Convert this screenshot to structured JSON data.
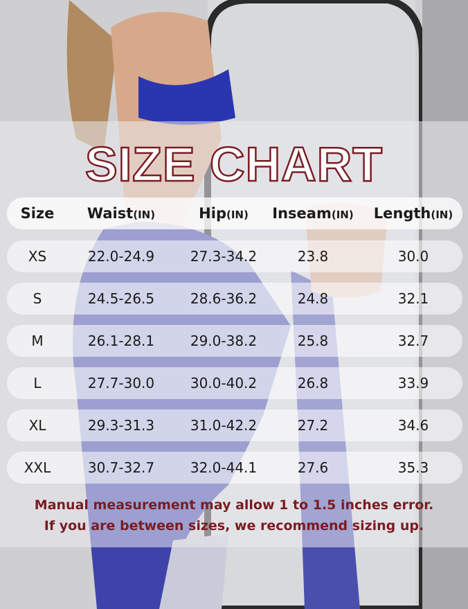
{
  "title": "SIZE CHART",
  "columns": [
    {
      "label": "Size",
      "unit": ""
    },
    {
      "label": "Waist",
      "unit": "(IN)"
    },
    {
      "label": "Hip",
      "unit": "(IN)"
    },
    {
      "label": "Inseam",
      "unit": "(IN)"
    },
    {
      "label": "Length",
      "unit": "(IN)"
    }
  ],
  "rows": [
    [
      "XS",
      "22.0-24.9",
      "27.3-34.2",
      "23.8",
      "30.0"
    ],
    [
      "S",
      "24.5-26.5",
      "28.6-36.2",
      "24.8",
      "32.1"
    ],
    [
      "M",
      "26.1-28.1",
      "29.0-38.2",
      "25.8",
      "32.7"
    ],
    [
      "L",
      "27.7-30.0",
      "30.0-40.2",
      "26.8",
      "33.9"
    ],
    [
      "XL",
      "29.3-31.3",
      "31.0-42.2",
      "27.2",
      "34.6"
    ],
    [
      "XXL",
      "30.7-32.7",
      "32.0-44.1",
      "27.6",
      "35.3"
    ]
  ],
  "notes": [
    "Manual measurement may allow 1 to 1.5 inches error.",
    "If you are between sizes, we recommend sizing up."
  ],
  "colors": {
    "title_outline": "#7a1c22",
    "note_text": "#7a1c22",
    "leggings": "#4a4fae"
  }
}
